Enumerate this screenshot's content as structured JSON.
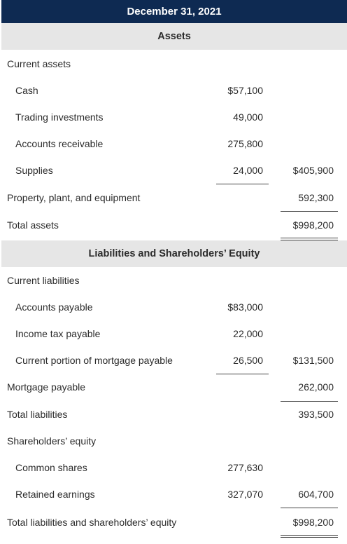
{
  "header": {
    "title": "December 31, 2021"
  },
  "assets": {
    "heading": "Assets",
    "current_assets_label": "Current assets",
    "cash": {
      "label": "Cash",
      "amount": "$57,100"
    },
    "trading_investments": {
      "label": "Trading investments",
      "amount": "49,000"
    },
    "accounts_receivable": {
      "label": "Accounts receivable",
      "amount": "275,800"
    },
    "supplies": {
      "label": "Supplies",
      "amount": "24,000",
      "subtotal": "$405,900"
    },
    "ppe": {
      "label": "Property, plant, and equipment",
      "total": "592,300"
    },
    "total_assets": {
      "label": "Total assets",
      "total": "$998,200"
    }
  },
  "liabilities_equity": {
    "heading": "Liabilities and Shareholders’ Equity",
    "current_liabilities_label": "Current liabilities",
    "accounts_payable": {
      "label": "Accounts payable",
      "amount": "$83,000"
    },
    "income_tax_payable": {
      "label": "Income tax payable",
      "amount": "22,000"
    },
    "current_mortgage": {
      "label": "Current portion of mortgage payable",
      "amount": "26,500",
      "subtotal": "$131,500"
    },
    "mortgage_payable": {
      "label": "Mortgage payable",
      "total": "262,000"
    },
    "total_liabilities": {
      "label": "Total liabilities",
      "total": "393,500"
    },
    "shareholders_equity_label": "Shareholders’ equity",
    "common_shares": {
      "label": "Common shares",
      "amount": "277,630"
    },
    "retained_earnings": {
      "label": "Retained earnings",
      "amount": "327,070",
      "subtotal": "604,700"
    },
    "total_liab_equity": {
      "label": "Total liabilities and shareholders’ equity",
      "total": "$998,200"
    }
  }
}
